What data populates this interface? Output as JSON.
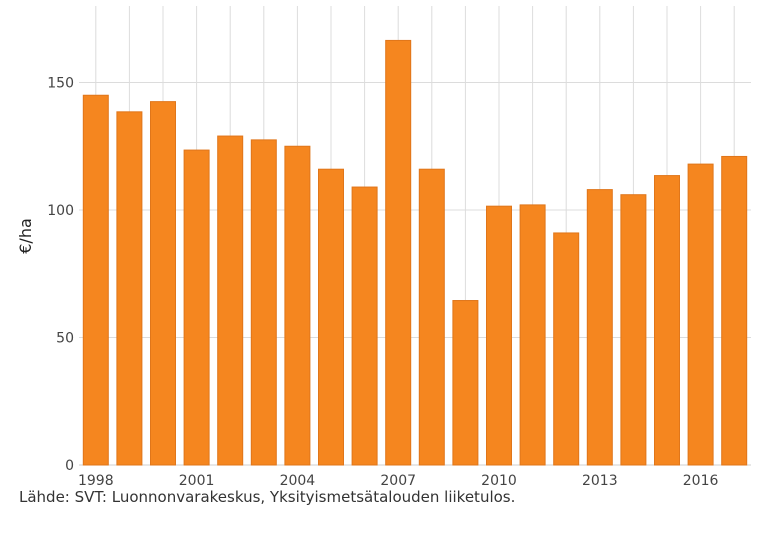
{
  "chart_data": {
    "type": "bar",
    "categories": [
      "1998",
      "1999",
      "2000",
      "2001",
      "2002",
      "2003",
      "2004",
      "2005",
      "2006",
      "2007",
      "2008",
      "2009",
      "2010",
      "2011",
      "2012",
      "2013",
      "2014",
      "2015",
      "2016",
      "2017"
    ],
    "values": [
      145,
      138.5,
      142.5,
      123.5,
      129,
      127.5,
      125,
      116,
      109,
      166.5,
      116,
      64.5,
      101.5,
      102,
      91,
      108,
      106,
      113.5,
      118,
      121
    ],
    "x_tick_labels": [
      "1998",
      "2001",
      "2004",
      "2007",
      "2010",
      "2013",
      "2016"
    ],
    "y_ticks": [
      0,
      50,
      100,
      150
    ],
    "ylim": [
      0,
      180
    ],
    "ylabel": "€/ha",
    "xlabel": "",
    "grid": true,
    "bar_color": "#f5861f"
  },
  "source_note": "Lähde: SVT: Luonnonvarakeskus, Yksityismetsätalouden liiketulos."
}
